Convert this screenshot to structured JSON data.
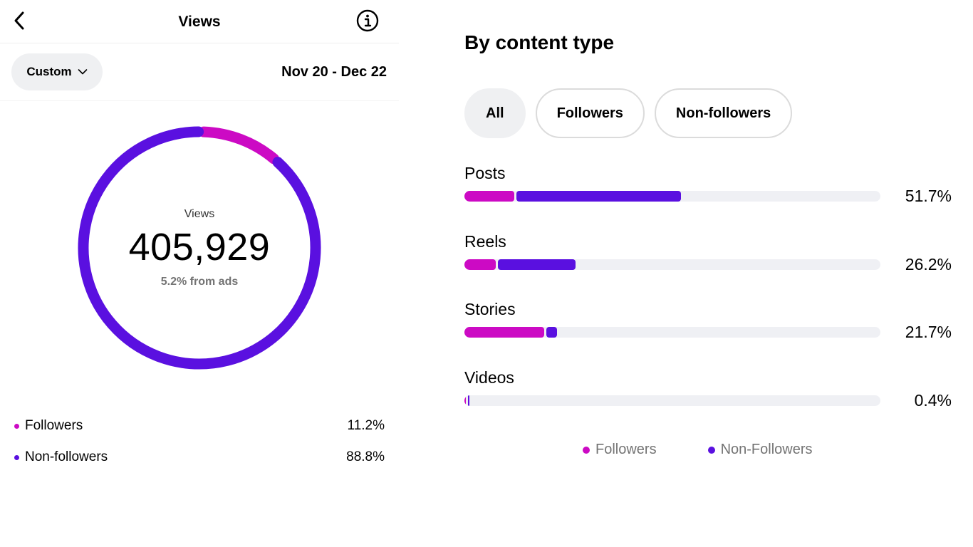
{
  "header": {
    "title": "Views",
    "back_icon": "chevron-left-icon",
    "info_icon": "info-icon"
  },
  "range": {
    "custom_label": "Custom",
    "dropdown_icon": "chevron-down-icon",
    "date_range": "Nov 20 - Dec 22"
  },
  "summary": {
    "label": "Views",
    "value": "405,929",
    "ads_note": "5.2% from ads"
  },
  "legend": [
    {
      "name": "Followers",
      "value": "11.2%",
      "share": 0.112,
      "color": "#cc0ac4"
    },
    {
      "name": "Non-followers",
      "value": "88.8%",
      "share": 0.888,
      "color": "#5a10e0"
    }
  ],
  "content_type": {
    "title": "By content type",
    "tabs": [
      {
        "label": "All",
        "active": true
      },
      {
        "label": "Followers",
        "active": false
      },
      {
        "label": "Non-followers",
        "active": false
      }
    ],
    "rows": [
      {
        "name": "Posts",
        "value": "51.7%",
        "followers_share": 0.12,
        "nonfollowers_share": 0.395
      },
      {
        "name": "Reels",
        "value": "26.2%",
        "followers_share": 0.075,
        "nonfollowers_share": 0.187
      },
      {
        "name": "Stories",
        "value": "21.7%",
        "followers_share": 0.192,
        "nonfollowers_share": 0.025
      },
      {
        "name": "Videos",
        "value": "0.4%",
        "followers_share": 0.002,
        "nonfollowers_share": 0.002
      }
    ],
    "legend": [
      {
        "name": "Followers",
        "color": "#cc0ac4"
      },
      {
        "name": "Non-Followers",
        "color": "#5a10e0"
      }
    ]
  },
  "colors": {
    "followers": "#cc0ac4",
    "nonfollowers": "#5a10e0",
    "track": "#eff0f4"
  }
}
